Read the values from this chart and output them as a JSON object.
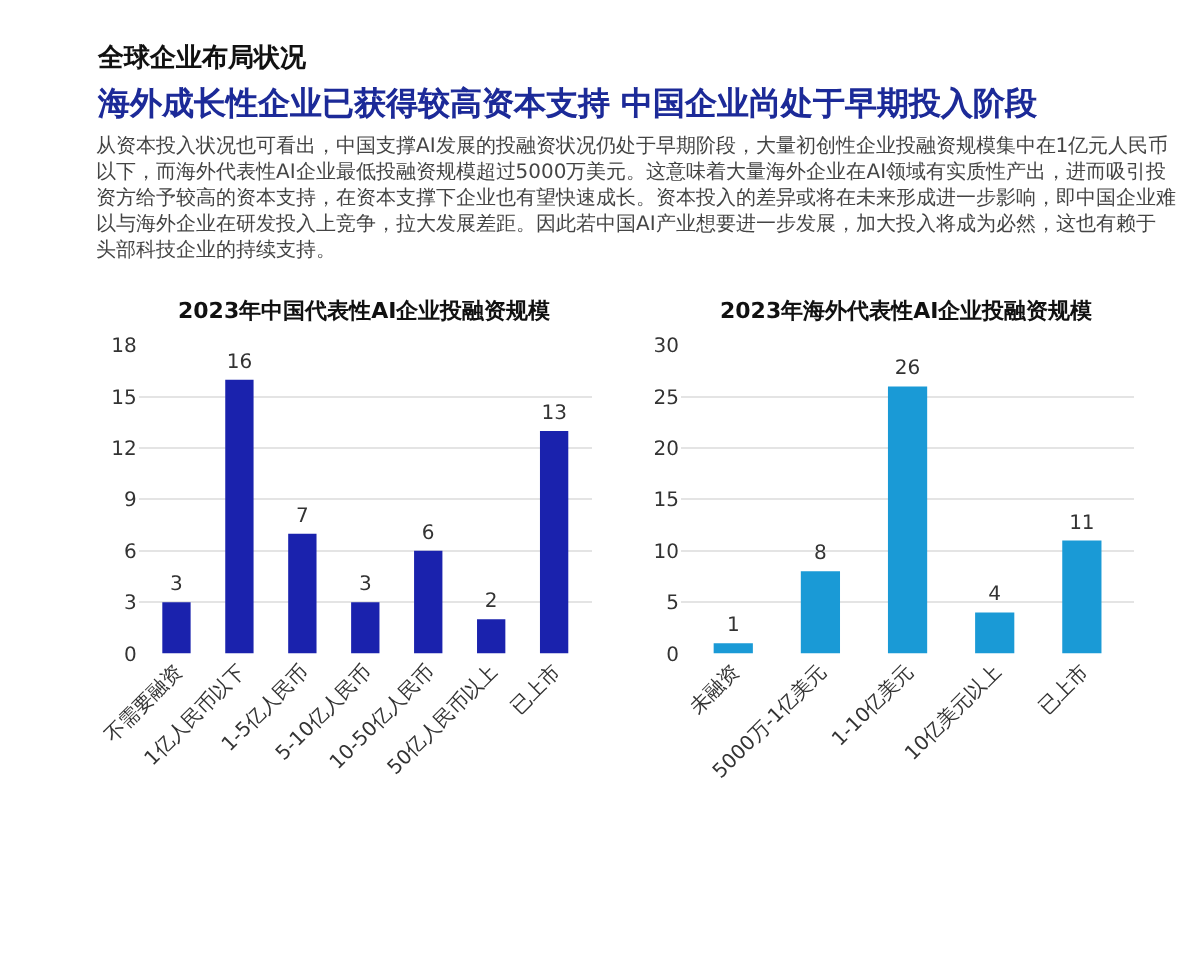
{
  "chart_data": [
    {
      "type": "other",
      "subtitle": "全球企业布局状况",
      "title": "海外成长性企业已获得较高资本支持 中国企业尚处于早期投入阶段",
      "annotations": [
        "从资本投入状况也可看出，中国支撑AI发展的投融资状况仍处于早期阶段，大量初创性企业投融资规模集中在1亿元人民币以下，而海外代表性AI企业最低投融资规模超过5000万美元。这意味着大量海外企业在AI领域有实质性产出，进而吸引投资方给予较高的资本支持，在资本支撑下企业也有望快速成长。资本投入的差异或将在未来形成进一步影响，即中国企业难以与海外企业在研发投入上竞争，拉大发展差距。因此若中国AI产业想要进一步发展，加大投入将成为必然，这也有赖于头部科技企业的持续支持。"
      ]
    },
    {
      "type": "bar",
      "title": "2023年中国代表性AI企业投融资规模",
      "categories": [
        "不需要融资",
        "1亿人民币以下",
        "1-5亿人民币",
        "5-10亿人民币",
        "10-50亿人民币",
        "50亿人民币以上",
        "已上市"
      ],
      "values": [
        3,
        16,
        7,
        3,
        6,
        2,
        13
      ],
      "color": "#1a22ad",
      "ylim": [
        0,
        18
      ],
      "yticks": [
        0,
        3,
        6,
        9,
        12,
        15,
        18
      ],
      "grid": "y",
      "data_labels": true
    },
    {
      "type": "bar",
      "title": "2023年海外代表性AI企业投融资规模",
      "categories": [
        "未融资",
        "5000万-1亿美元",
        "1-10亿美元",
        "10亿美元以上",
        "已上市"
      ],
      "values": [
        1,
        8,
        26,
        4,
        11
      ],
      "color": "#1a9ad6",
      "ylim": [
        0,
        30
      ],
      "yticks": [
        0,
        5,
        10,
        15,
        20,
        25,
        30
      ],
      "grid": "y",
      "data_labels": true
    }
  ]
}
